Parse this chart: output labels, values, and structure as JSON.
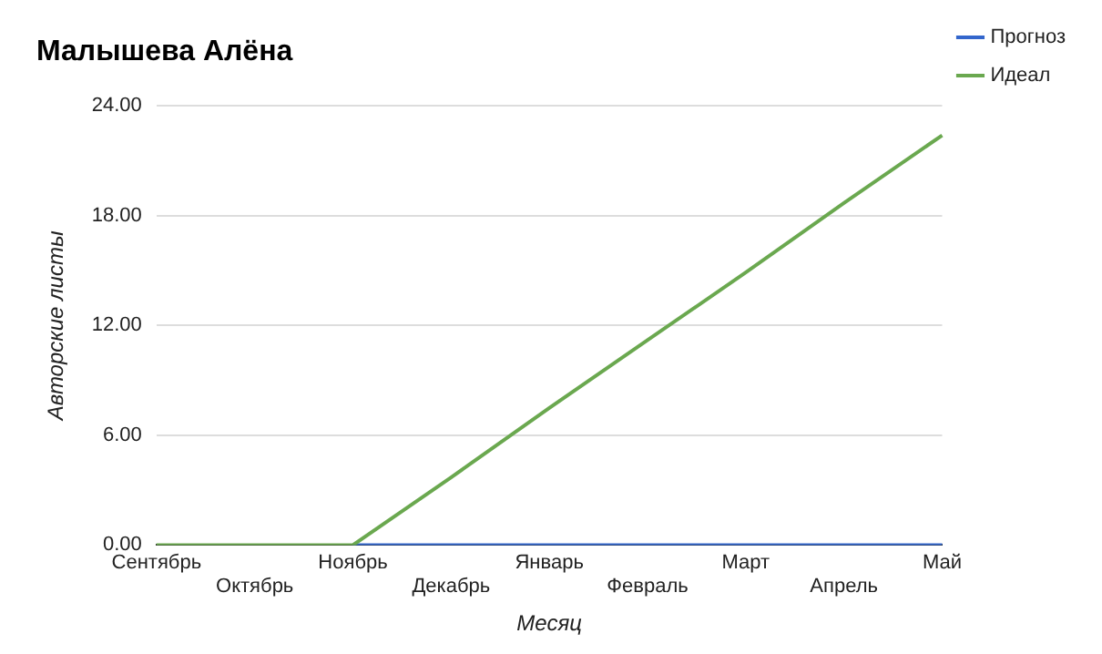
{
  "chart_data": {
    "type": "line",
    "title": "Малышева Алёна",
    "xlabel": "Месяц",
    "ylabel": "Авторские листы",
    "categories": [
      "Сентябрь",
      "Октябрь",
      "Ноябрь",
      "Декабрь",
      "Январь",
      "Февраль",
      "Март",
      "Апрель",
      "Май"
    ],
    "series": [
      {
        "name": "Прогноз",
        "color": "#3366cc",
        "values": [
          null,
          null,
          0,
          0,
          0,
          0,
          0,
          0,
          0
        ]
      },
      {
        "name": "Идеал",
        "color": "#6aa84f",
        "values": [
          0,
          0,
          0,
          3.7,
          7.5,
          11.2,
          14.9,
          18.7,
          22.4
        ]
      }
    ],
    "ylim": [
      0,
      24
    ],
    "yticks": [
      {
        "value": 0,
        "label": "0.00"
      },
      {
        "value": 6,
        "label": "6.00"
      },
      {
        "value": 12,
        "label": "12.00"
      },
      {
        "value": 18,
        "label": "18.00"
      },
      {
        "value": 24,
        "label": "24.00"
      }
    ],
    "grid": "y",
    "legend": "right",
    "marker": "none"
  }
}
